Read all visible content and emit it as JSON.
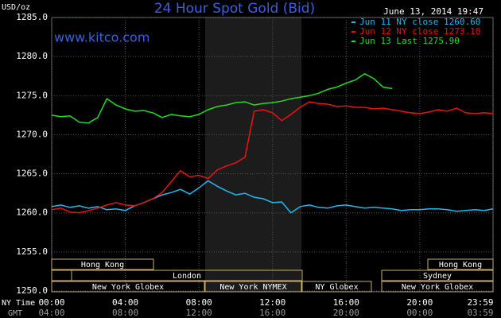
{
  "chart_data": {
    "type": "line",
    "title": "24 Hour Spot Gold (Bid)",
    "site": "www.kitco.com",
    "timestamp": "June 13, 2014 19:47",
    "y_label": "USD/oz",
    "x_label": "NY Time",
    "x2_label": "GMT",
    "grid": true,
    "xlim": [
      0,
      23.98
    ],
    "ylim": [
      1250,
      1285
    ],
    "yticks": [
      {
        "value": 1250,
        "label": "1250.0"
      },
      {
        "value": 1255,
        "label": "1255.0"
      },
      {
        "value": 1260,
        "label": "1260.0"
      },
      {
        "value": 1265,
        "label": "1265.0"
      },
      {
        "value": 1270,
        "label": "1270.0"
      },
      {
        "value": 1275,
        "label": "1275.0"
      },
      {
        "value": 1280,
        "label": "1280.0"
      },
      {
        "value": 1285,
        "label": "1285.0"
      }
    ],
    "xticks": [
      {
        "value": 0,
        "label": "00:00"
      },
      {
        "value": 4,
        "label": "04:00"
      },
      {
        "value": 8,
        "label": "08:00"
      },
      {
        "value": 12,
        "label": "12:00"
      },
      {
        "value": 16,
        "label": "16:00"
      },
      {
        "value": 20,
        "label": "20:00"
      },
      {
        "value": 23.98,
        "label": "23:59"
      }
    ],
    "x2ticks": [
      {
        "value": 0,
        "label": "04:00"
      },
      {
        "value": 4,
        "label": "08:00"
      },
      {
        "value": 8,
        "label": "12:00"
      },
      {
        "value": 12,
        "label": "16:00"
      },
      {
        "value": 16,
        "label": "20:00"
      },
      {
        "value": 20,
        "label": "00:00"
      },
      {
        "value": 23.98,
        "label": "03:59"
      }
    ],
    "sessions": [
      "Hong Kong",
      "Hong Kong",
      "London",
      "Sydney",
      "New York Globex",
      "New York NYMEX",
      "NY Globex",
      "New York Globex"
    ],
    "x": [
      0,
      0.5,
      1,
      1.5,
      2,
      2.5,
      3,
      3.5,
      4,
      4.5,
      5,
      5.5,
      6,
      6.5,
      7,
      7.5,
      8,
      8.5,
      9,
      9.5,
      10,
      10.5,
      11,
      11.5,
      12,
      12.5,
      13,
      13.5,
      14,
      14.5,
      15,
      15.5,
      16,
      16.5,
      17,
      17.5,
      18,
      18.5,
      19,
      19.5,
      20,
      20.5,
      21,
      21.5,
      22,
      22.5,
      23,
      23.5,
      23.98
    ],
    "series": [
      {
        "name": "Jun 11 NY close 1260.60",
        "color": "#22b8f0",
        "values": [
          1260.8,
          1261.0,
          1260.7,
          1260.9,
          1260.6,
          1260.8,
          1260.4,
          1260.5,
          1260.3,
          1260.9,
          1261.3,
          1261.8,
          1262.3,
          1262.6,
          1263.0,
          1262.4,
          1263.2,
          1264.1,
          1263.4,
          1262.8,
          1262.3,
          1262.5,
          1262.0,
          1261.8,
          1261.3,
          1261.4,
          1260.0,
          1260.8,
          1261.0,
          1260.7,
          1260.6,
          1260.9,
          1261.0,
          1260.8,
          1260.6,
          1260.7,
          1260.6,
          1260.5,
          1260.3,
          1260.4,
          1260.4,
          1260.5,
          1260.5,
          1260.4,
          1260.2,
          1260.3,
          1260.4,
          1260.3,
          1260.5
        ]
      },
      {
        "name": "Jun 12 NY close 1273.10",
        "color": "#ee1111",
        "values": [
          1260.4,
          1260.6,
          1260.1,
          1260.0,
          1260.3,
          1260.6,
          1261.0,
          1261.3,
          1261.0,
          1260.9,
          1261.3,
          1261.8,
          1262.6,
          1264.0,
          1265.4,
          1264.6,
          1264.8,
          1264.4,
          1265.5,
          1266.0,
          1266.4,
          1267.1,
          1273.0,
          1273.2,
          1272.8,
          1271.8,
          1272.6,
          1273.5,
          1274.2,
          1274.0,
          1273.9,
          1273.6,
          1273.7,
          1273.5,
          1273.5,
          1273.3,
          1273.4,
          1273.2,
          1273.0,
          1272.8,
          1272.7,
          1272.9,
          1273.2,
          1273.0,
          1273.4,
          1272.8,
          1272.7,
          1272.8,
          1272.7
        ]
      },
      {
        "name": "Jun 13 Last 1275.90",
        "color": "#22dd22",
        "values": [
          1272.5,
          1272.3,
          1272.4,
          1271.6,
          1271.5,
          1272.2,
          1274.6,
          1273.8,
          1273.3,
          1273.0,
          1273.1,
          1272.8,
          1272.2,
          1272.6,
          1272.4,
          1272.3,
          1272.6,
          1273.2,
          1273.6,
          1273.8,
          1274.1,
          1274.2,
          1273.8,
          1274.0,
          1274.1,
          1274.3,
          1274.6,
          1274.8,
          1275.0,
          1275.3,
          1275.8,
          1276.1,
          1276.6,
          1277.0,
          1277.8,
          1277.2,
          1276.1,
          1275.9,
          null,
          null,
          null,
          null,
          null,
          null,
          null,
          null,
          null,
          null,
          null
        ]
      }
    ]
  }
}
